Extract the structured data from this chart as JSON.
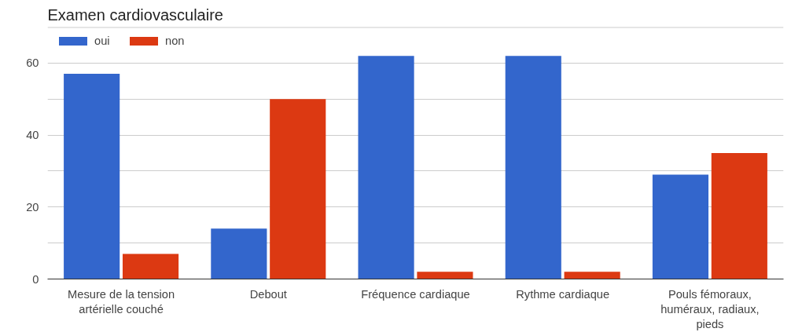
{
  "chart_data": {
    "type": "bar",
    "title": "Examen cardiovasculaire",
    "categories": [
      "Mesure de la tension artérielle couché",
      "Debout",
      "Fréquence cardiaque",
      "Rythme cardiaque",
      "Pouls fémoraux, huméraux, radiaux, pieds"
    ],
    "series": [
      {
        "name": "oui",
        "color": "#3366cc",
        "values": [
          57,
          14,
          62,
          62,
          29
        ]
      },
      {
        "name": "non",
        "color": "#dc3912",
        "values": [
          7,
          50,
          2,
          2,
          35
        ]
      }
    ],
    "ylim": [
      0,
      70
    ],
    "yticks": [
      0,
      {
        "value": 10,
        "label": null
      },
      20,
      {
        "value": 30,
        "label": null
      },
      40,
      {
        "value": 50,
        "label": null
      },
      60,
      {
        "value": 70,
        "label": null
      }
    ],
    "grid": "y",
    "legend": "top left"
  }
}
